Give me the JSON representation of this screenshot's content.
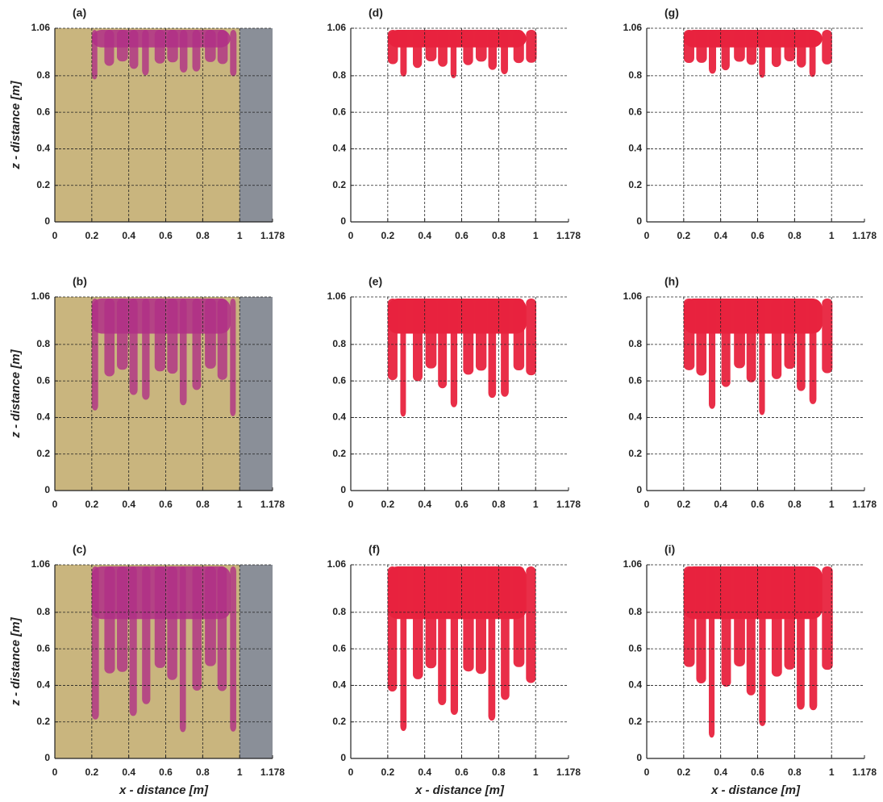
{
  "axes": {
    "xlim": [
      0,
      1.178
    ],
    "ylim": [
      0,
      1.06
    ],
    "xticks": [
      0,
      0.2,
      0.4,
      0.6,
      0.8,
      1,
      1.178
    ],
    "yticks": [
      0,
      0.2,
      0.4,
      0.6,
      0.8,
      1.06
    ],
    "xlabel": "x - distance   [m]",
    "ylabel": "z - distance   [m]"
  },
  "panels": [
    {
      "label": "(a)"
    },
    {
      "label": "(d)"
    },
    {
      "label": "(g)"
    },
    {
      "label": "(b)"
    },
    {
      "label": "(e)"
    },
    {
      "label": "(h)"
    },
    {
      "label": "(c)"
    },
    {
      "label": "(f)"
    },
    {
      "label": "(i)"
    }
  ]
}
